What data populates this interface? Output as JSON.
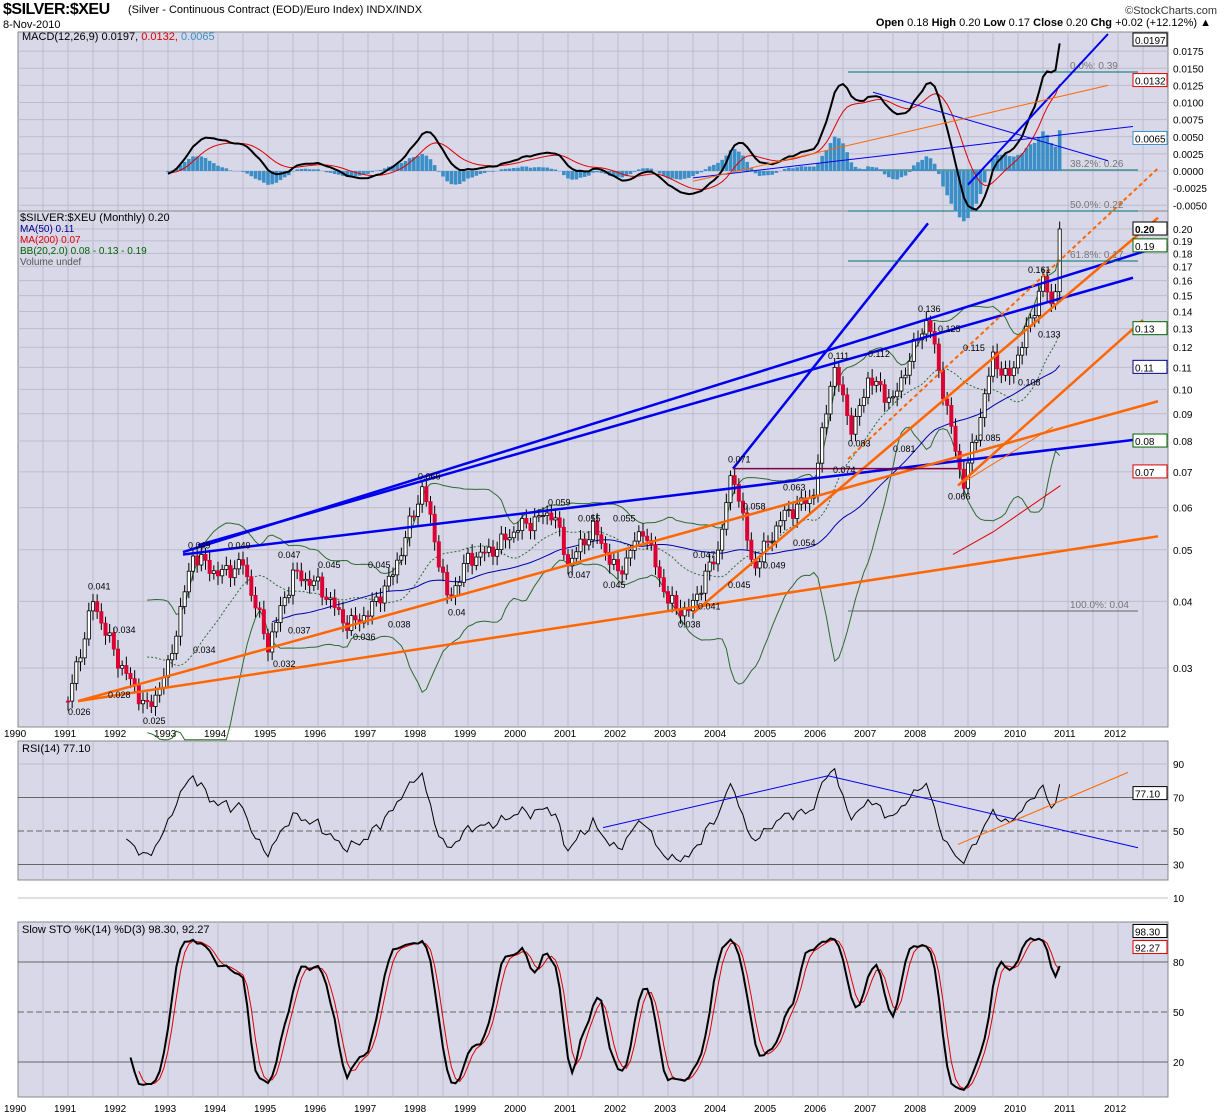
{
  "header": {
    "symbol": "$SILVER:$XEU",
    "description": "(Silver - Continuous Contract (EOD)/Euro Index) INDX/INDX",
    "date": "8-Nov-2010",
    "brand": "©StockCharts.com",
    "open_label": "Open",
    "open": "0.18",
    "high_label": "High",
    "high": "0.20",
    "low_label": "Low",
    "low": "0.17",
    "close_label": "Close",
    "close": "0.20",
    "chg_label": "Chg",
    "chg": "+0.02 (+12.12%)"
  },
  "chart_data": {
    "type": "candlestick",
    "years": [
      "1990",
      "1991",
      "1992",
      "1993",
      "1994",
      "1995",
      "1996",
      "1997",
      "1998",
      "1999",
      "2000",
      "2001",
      "2002",
      "2003",
      "2004",
      "2005",
      "2006",
      "2007",
      "2008",
      "2009",
      "2010",
      "2011",
      "2012"
    ],
    "price_anchors": [
      [
        1991.0,
        0.026
      ],
      [
        1991.5,
        0.04
      ],
      [
        1992.0,
        0.031
      ],
      [
        1992.6,
        0.025
      ],
      [
        1993.0,
        0.03
      ],
      [
        1993.5,
        0.049
      ],
      [
        1994.0,
        0.045
      ],
      [
        1994.5,
        0.047
      ],
      [
        1995.0,
        0.033
      ],
      [
        1995.5,
        0.045
      ],
      [
        1996.0,
        0.043
      ],
      [
        1996.6,
        0.036
      ],
      [
        1997.0,
        0.038
      ],
      [
        1997.5,
        0.045
      ],
      [
        1998.1,
        0.066
      ],
      [
        1998.6,
        0.04
      ],
      [
        1999.0,
        0.048
      ],
      [
        1999.5,
        0.05
      ],
      [
        2000.0,
        0.055
      ],
      [
        2000.7,
        0.059
      ],
      [
        2001.0,
        0.047
      ],
      [
        2001.5,
        0.055
      ],
      [
        2002.0,
        0.045
      ],
      [
        2002.5,
        0.055
      ],
      [
        2003.0,
        0.04
      ],
      [
        2003.4,
        0.038
      ],
      [
        2004.0,
        0.05
      ],
      [
        2004.3,
        0.071
      ],
      [
        2004.7,
        0.046
      ],
      [
        2005.3,
        0.058
      ],
      [
        2005.9,
        0.063
      ],
      [
        2006.3,
        0.111
      ],
      [
        2006.7,
        0.083
      ],
      [
        2007.0,
        0.105
      ],
      [
        2007.5,
        0.095
      ],
      [
        2008.0,
        0.125
      ],
      [
        2008.2,
        0.136
      ],
      [
        2008.9,
        0.066
      ],
      [
        2009.2,
        0.085
      ],
      [
        2009.5,
        0.115
      ],
      [
        2009.8,
        0.104
      ],
      [
        2010.2,
        0.13
      ],
      [
        2010.5,
        0.161
      ],
      [
        2010.7,
        0.14
      ],
      [
        2010.85,
        0.2
      ]
    ],
    "price_axis": {
      "scale": "log",
      "ticks": [
        "0.20",
        "0.19",
        "0.18",
        "0.17",
        "0.16",
        "0.15",
        "0.14",
        "0.13",
        "0.12",
        "0.11",
        "0.10",
        "0.09",
        "0.08",
        "0.07",
        "0.06",
        "0.05",
        "0.04",
        "0.03"
      ]
    },
    "price_legend": {
      "title": "$SILVER:$XEU (Monthly) 0.20",
      "ma50": "MA(50) 0.11",
      "ma200": "MA(200) 0.07",
      "bb": "BB(20,2.0) 0.08 - 0.13 - 0.19",
      "volume": "Volume undef"
    },
    "price_tags": [
      {
        "v": "0.20",
        "color": "#000000"
      },
      {
        "v": "0.19",
        "color": "#006400"
      },
      {
        "v": "0.13",
        "color": "#006400"
      },
      {
        "v": "0.11",
        "color": "#00008b"
      },
      {
        "v": "0.08",
        "color": "#006400"
      },
      {
        "v": "0.07",
        "color": "#e00000"
      }
    ],
    "annotations": [
      [
        1991.2,
        0.026,
        "0.026",
        1
      ],
      [
        1991.6,
        0.041,
        "0.041",
        0
      ],
      [
        1992.1,
        0.034,
        "0.034",
        0
      ],
      [
        1992.0,
        0.028,
        "0.028",
        1
      ],
      [
        1992.7,
        0.025,
        "0.025",
        1
      ],
      [
        1993.7,
        0.034,
        "0.034",
        1
      ],
      [
        1993.6,
        0.049,
        "0.049",
        0
      ],
      [
        1994.4,
        0.049,
        "0.049",
        0
      ],
      [
        1995.4,
        0.047,
        "0.047",
        0
      ],
      [
        1995.6,
        0.037,
        "0.037",
        1
      ],
      [
        1995.3,
        0.032,
        "0.032",
        1
      ],
      [
        1996.2,
        0.045,
        "0.045",
        0
      ],
      [
        1997.2,
        0.045,
        "0.045",
        0
      ],
      [
        1996.9,
        0.036,
        "0.036",
        1
      ],
      [
        1997.6,
        0.038,
        "0.038",
        1
      ],
      [
        1998.2,
        0.066,
        "0.066",
        0
      ],
      [
        1998.8,
        0.04,
        "0.04",
        1
      ],
      [
        2000.8,
        0.059,
        "0.059",
        0
      ],
      [
        2001.4,
        0.055,
        "0.055",
        0
      ],
      [
        2002.1,
        0.055,
        "0.055",
        0
      ],
      [
        2001.2,
        0.047,
        "0.047",
        1
      ],
      [
        2001.9,
        0.045,
        "0.045",
        1
      ],
      [
        2003.7,
        0.047,
        "0.047",
        0
      ],
      [
        2003.4,
        0.038,
        "0.038",
        1
      ],
      [
        2003.8,
        0.041,
        "0.041",
        1
      ],
      [
        2004.4,
        0.071,
        "0.071",
        0
      ],
      [
        2004.7,
        0.058,
        "0.058",
        0
      ],
      [
        2004.4,
        0.045,
        "0.045",
        1
      ],
      [
        2005.5,
        0.063,
        "0.063",
        0
      ],
      [
        2005.1,
        0.049,
        "0.049",
        1
      ],
      [
        2005.7,
        0.054,
        "0.054",
        1
      ],
      [
        2006.4,
        0.111,
        "0.111",
        0
      ],
      [
        2006.8,
        0.083,
        "0.083",
        1
      ],
      [
        2006.5,
        0.074,
        "0.074",
        1
      ],
      [
        2007.2,
        0.112,
        "0.112",
        0
      ],
      [
        2007.7,
        0.081,
        "0.081",
        1
      ],
      [
        2008.2,
        0.136,
        "0.136",
        0
      ],
      [
        2008.6,
        0.125,
        "0.125",
        0
      ],
      [
        2009.1,
        0.115,
        "0.115",
        0
      ],
      [
        2008.8,
        0.066,
        "0.066",
        1
      ],
      [
        2009.4,
        0.085,
        "0.085",
        1
      ],
      [
        2010.4,
        0.161,
        "0.161",
        0
      ],
      [
        2010.6,
        0.133,
        "0.133",
        1
      ],
      [
        2010.2,
        0.108,
        "0.108",
        1
      ]
    ],
    "trendlines": [
      {
        "color": "#0000ee",
        "w": 2.5,
        "pts": [
          [
            1993.3,
            0.0495
          ],
          [
            2012.8,
            0.185
          ]
        ]
      },
      {
        "color": "#0000ee",
        "w": 2.5,
        "pts": [
          [
            1993.6,
            0.051
          ],
          [
            2012.3,
            0.162
          ]
        ]
      },
      {
        "color": "#0000ee",
        "w": 2.5,
        "pts": [
          [
            1993.3,
            0.049
          ],
          [
            2012.6,
            0.081
          ]
        ]
      },
      {
        "color": "#0000ee",
        "w": 2.5,
        "pts": [
          [
            2004.3,
            0.071
          ],
          [
            2008.2,
            0.205
          ]
        ]
      },
      {
        "color": "#ff6600",
        "w": 2.5,
        "pts": [
          [
            1991.2,
            0.026
          ],
          [
            2012.8,
            0.053
          ]
        ]
      },
      {
        "color": "#ff6600",
        "w": 2.5,
        "pts": [
          [
            1991.2,
            0.026
          ],
          [
            2012.8,
            0.095
          ]
        ]
      },
      {
        "color": "#ff6600",
        "w": 2.5,
        "pts": [
          [
            2003.5,
            0.038
          ],
          [
            2012.8,
            0.21
          ]
        ]
      },
      {
        "color": "#ff6600",
        "w": 2.5,
        "pts": [
          [
            2008.8,
            0.066
          ],
          [
            2012.5,
            0.135
          ]
        ]
      },
      {
        "color": "#ff6600",
        "w": 1,
        "pts": [
          [
            2008.8,
            0.066
          ],
          [
            2010.7,
            0.085
          ]
        ]
      },
      {
        "color": "#ff6600",
        "w": 2,
        "dash": true,
        "pts": [
          [
            2006.6,
            0.074
          ],
          [
            2012.8,
            0.26
          ]
        ]
      },
      {
        "color": "#800040",
        "w": 1.5,
        "pts": [
          [
            2004.3,
            0.071
          ],
          [
            2008.8,
            0.071
          ]
        ]
      }
    ],
    "fib": [
      {
        "label": "0.0%: 0.39"
      },
      {
        "label": "38.2%: 0.26"
      },
      {
        "label": "50.0%: 0.22"
      },
      {
        "label": "61.8%: 0.17"
      },
      {
        "label": "100.0%: 0.04"
      }
    ],
    "macd": {
      "legend_name": "MACD(12,26,9)",
      "v1": "0.0197",
      "v2": "0.0132",
      "v3": "0.0065",
      "ticks": [
        "0.0175",
        "0.0150",
        "0.0125",
        "0.0100",
        "0.0075",
        "0.0050",
        "0.0025",
        "0.0000",
        "-0.0025",
        "-0.0050"
      ]
    },
    "rsi": {
      "legend": "RSI(14) 77.10",
      "value": "77.10",
      "ticks": [
        "90",
        "70",
        "50",
        "30",
        "10"
      ]
    },
    "sto": {
      "legend_name": "Slow STO %K(14) %D(3)",
      "k": "98.30",
      "d": "92.27",
      "ticks": [
        "80",
        "50",
        "20"
      ]
    }
  }
}
